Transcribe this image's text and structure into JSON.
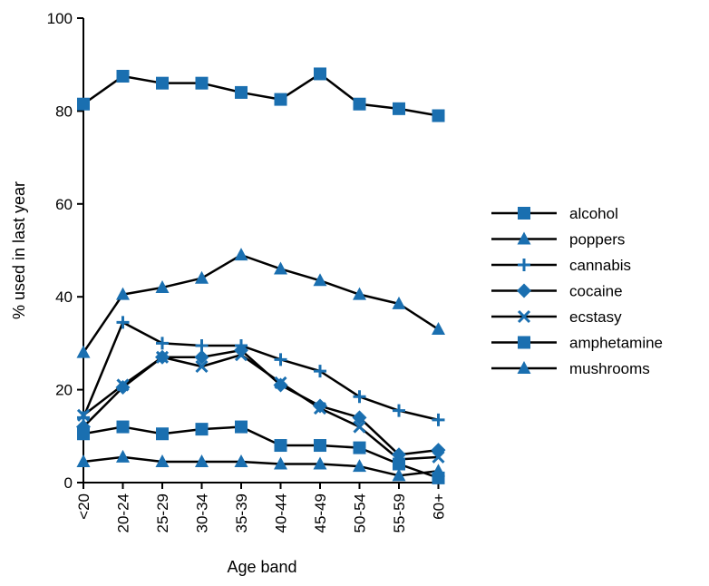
{
  "chart_data": {
    "type": "line",
    "title": "",
    "xlabel": "Age band",
    "ylabel": "% used in last year",
    "ylim": [
      0,
      100
    ],
    "yticks": [
      0,
      20,
      40,
      60,
      80,
      100
    ],
    "categories": [
      "<20",
      "20-24",
      "25-29",
      "30-34",
      "35-39",
      "40-44",
      "45-49",
      "50-54",
      "55-59",
      "60+"
    ],
    "legend_position": "right",
    "marker_color": "#1a6fb0",
    "line_color": "#000000",
    "series": [
      {
        "name": "alcohol",
        "marker": "square",
        "values": [
          81.5,
          87.5,
          86,
          86,
          84,
          82.5,
          88,
          81.5,
          80.5,
          79
        ]
      },
      {
        "name": "poppers",
        "marker": "triangle",
        "values": [
          28,
          40.5,
          42,
          44,
          49,
          46,
          43.5,
          40.5,
          38.5,
          33
        ]
      },
      {
        "name": "cannabis",
        "marker": "plus",
        "values": [
          14,
          34.5,
          30,
          29.5,
          29.5,
          26.5,
          24,
          18.5,
          15.5,
          13.5
        ]
      },
      {
        "name": "cocaine",
        "marker": "diamond",
        "values": [
          12,
          20.5,
          27,
          27,
          28.5,
          21,
          16.5,
          14,
          6,
          7
        ]
      },
      {
        "name": "ecstasy",
        "marker": "cross",
        "values": [
          14.5,
          21,
          27,
          25,
          27.5,
          21.5,
          16,
          12,
          5,
          5.5
        ]
      },
      {
        "name": "amphetamine",
        "marker": "square",
        "values": [
          10.5,
          12,
          10.5,
          11.5,
          12,
          8,
          8,
          7.5,
          4,
          1
        ]
      },
      {
        "name": "mushrooms",
        "marker": "triangle",
        "values": [
          4.5,
          5.5,
          4.5,
          4.5,
          4.5,
          4,
          4,
          3.5,
          1.5,
          2.5
        ]
      }
    ]
  }
}
